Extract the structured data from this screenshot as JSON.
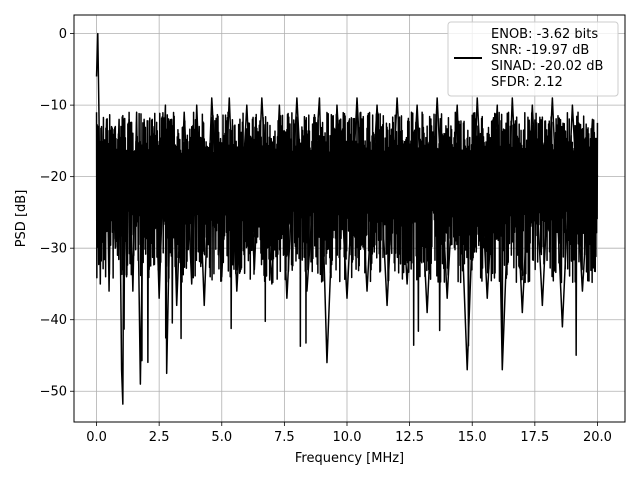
{
  "chart_data": {
    "type": "line",
    "title": "",
    "xlabel": "Frequency [MHz]",
    "ylabel": "PSD [dB]",
    "xlim": [
      -0.9,
      21.1
    ],
    "ylim": [
      -54.3,
      2.6
    ],
    "xticks": [
      0.0,
      2.5,
      5.0,
      7.5,
      10.0,
      12.5,
      15.0,
      17.5,
      20.0
    ],
    "xtick_labels": [
      "0.0",
      "2.5",
      "5.0",
      "7.5",
      "10.0",
      "12.5",
      "15.0",
      "17.5",
      "20.0"
    ],
    "yticks": [
      0,
      -10,
      -20,
      -30,
      -40,
      -50
    ],
    "ytick_labels": [
      "0",
      "−10",
      "−20",
      "−30",
      "−40",
      "−50"
    ],
    "grid": true,
    "legend_position": "upper right",
    "legend_lines": [
      "ENOB: -3.62 bits",
      "SNR: -19.97 dB",
      "SINAD: -20.02 dB",
      "SFDR: 2.12"
    ],
    "line_color": "#000000",
    "series": [
      {
        "description": "noise-like PSD trace, about -20 dB floor with ~-9 dB peaks and troughs to ~-51 dB",
        "x": [
          0.0,
          0.05,
          0.1,
          0.15,
          0.2,
          0.3,
          0.4,
          0.5,
          0.6,
          0.75,
          0.9,
          1.0,
          1.05,
          1.1,
          1.2,
          1.3,
          1.45,
          1.6,
          1.75,
          1.9,
          2.1,
          2.3,
          2.5,
          2.75,
          2.8,
          3.0,
          3.2,
          3.5,
          3.8,
          4.0,
          4.3,
          4.6,
          5.0,
          5.3,
          5.6,
          6.0,
          6.3,
          6.6,
          7.0,
          7.3,
          7.6,
          8.0,
          8.4,
          8.9,
          9.2,
          9.6,
          10.0,
          10.4,
          10.8,
          11.2,
          11.6,
          12.0,
          12.4,
          12.8,
          13.2,
          13.6,
          14.0,
          14.4,
          14.8,
          15.2,
          15.6,
          16.0,
          16.2,
          16.6,
          17.0,
          17.4,
          17.8,
          18.2,
          18.6,
          19.0,
          19.4,
          19.8,
          20.0
        ],
        "y": [
          -6,
          0.0,
          -12,
          -35,
          -13,
          -31,
          -12,
          -36,
          -13,
          -30,
          -12,
          -47,
          -51.8,
          -14,
          -34,
          -12,
          -36,
          -11,
          -49,
          -12,
          -33,
          -13,
          -37,
          -10,
          -47.5,
          -12,
          -38,
          -11,
          -35,
          -10,
          -38,
          -9,
          -34,
          -9,
          -36,
          -10,
          -33,
          -9,
          -35,
          -10,
          -37,
          -9,
          -36,
          -9,
          -46,
          -10,
          -37,
          -9,
          -36,
          -10,
          -38,
          -9,
          -35,
          -10,
          -39,
          -9,
          -37,
          -10,
          -47,
          -9,
          -37,
          -10,
          -47,
          -9,
          -39,
          -10,
          -38,
          -9,
          -41,
          -10,
          -36,
          -12,
          -20
        ]
      }
    ]
  }
}
